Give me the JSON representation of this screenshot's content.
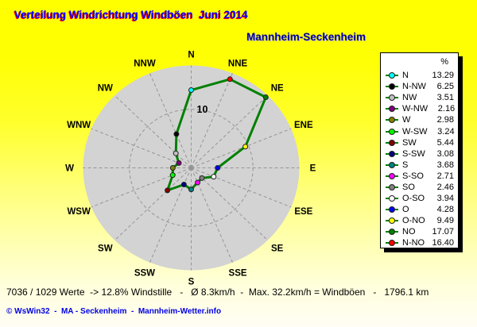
{
  "title": "Verteilung Windrichtung Windböen  Juni 2014",
  "subtitle": "Mannheim-Seckenheim",
  "stats_line": "7036 / 1029 Werte  -> 12.8% Windstille   -   Ø 8.3km/h  -  Max. 32.2km/h = Windböen   -   1796.1 km",
  "footer_line": "© WsWin32  -  MA - Seckenheim  -  Mannheim-Wetter.info",
  "colors": {
    "title_text": "#0000ff",
    "title_shadow": "#ff0000",
    "subtitle_text": "#000090",
    "background_top": "#ffff00",
    "background_bottom": "#fffdf4",
    "disk_fill": "#d3d3d3",
    "grid_line": "#959595",
    "polygon_line": "#008000",
    "legend_box_bg": "#ffffff",
    "legend_box_shadow": "#000000",
    "footer_text": "#0000e6"
  },
  "chart_data": {
    "type": "line",
    "subtype": "polar-wind-rose",
    "title": "Verteilung Windrichtung Windböen Juni 2014",
    "station": "Mannheim-Seckenheim",
    "unit": "%",
    "legend_header": "%",
    "scale_label": "10",
    "grid_circle_value": 10,
    "scale_max": 17.5,
    "grid_on": true,
    "legend_position": "right",
    "axis_labels_clockwise_from_north": [
      "N",
      "NNE",
      "NE",
      "ENE",
      "E",
      "ESE",
      "SE",
      "SSE",
      "S",
      "SSW",
      "SW",
      "WSW",
      "W",
      "WNW",
      "NW",
      "NNW"
    ],
    "legend": [
      {
        "label": "N",
        "value": 13.29,
        "value_text": "13.29",
        "marker_color": "#00ffff",
        "direction_deg": 0
      },
      {
        "label": "N-NW",
        "value": 6.25,
        "value_text": "6.25",
        "marker_color": "#000000",
        "direction_deg": 337.5
      },
      {
        "label": "NW",
        "value": 3.51,
        "value_text": "3.51",
        "marker_color": "#c0c0c0",
        "direction_deg": 315
      },
      {
        "label": "W-NW",
        "value": 2.16,
        "value_text": "2.16",
        "marker_color": "#800080",
        "direction_deg": 292.5
      },
      {
        "label": "W",
        "value": 2.98,
        "value_text": "2.98",
        "marker_color": "#808000",
        "direction_deg": 270
      },
      {
        "label": "W-SW",
        "value": 3.24,
        "value_text": "3.24",
        "marker_color": "#00ff00",
        "direction_deg": 247.5
      },
      {
        "label": "SW",
        "value": 5.44,
        "value_text": "5.44",
        "marker_color": "#800000",
        "direction_deg": 225
      },
      {
        "label": "S-SW",
        "value": 3.08,
        "value_text": "3.08",
        "marker_color": "#000080",
        "direction_deg": 202.5
      },
      {
        "label": "S",
        "value": 3.68,
        "value_text": "3.68",
        "marker_color": "#008080",
        "direction_deg": 180
      },
      {
        "label": "S-SO",
        "value": 2.71,
        "value_text": "2.71",
        "marker_color": "#ff00ff",
        "direction_deg": 157.5
      },
      {
        "label": "SO",
        "value": 2.46,
        "value_text": "2.46",
        "marker_color": "#808080",
        "direction_deg": 135
      },
      {
        "label": "O-SO",
        "value": 3.94,
        "value_text": "3.94",
        "marker_color": "#ffffff",
        "direction_deg": 112.5
      },
      {
        "label": "O",
        "value": 4.28,
        "value_text": "4.28",
        "marker_color": "#0000ff",
        "direction_deg": 90
      },
      {
        "label": "O-NO",
        "value": 9.49,
        "value_text": "9.49",
        "marker_color": "#ffff00",
        "direction_deg": 67.5
      },
      {
        "label": "NO",
        "value": 17.07,
        "value_text": "17.07",
        "marker_color": "#008000",
        "direction_deg": 45
      },
      {
        "label": "N-NO",
        "value": 16.4,
        "value_text": "16.40",
        "marker_color": "#ff0000",
        "direction_deg": 22.5
      }
    ]
  }
}
